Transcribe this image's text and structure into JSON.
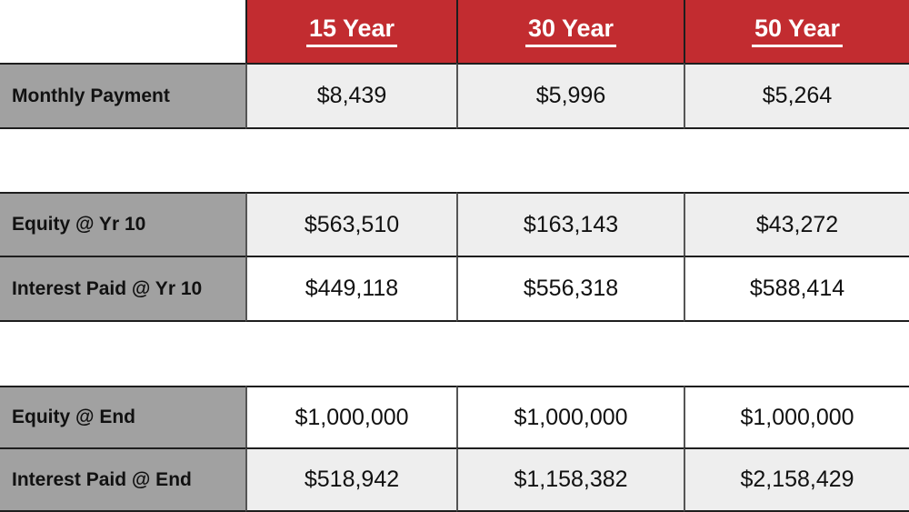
{
  "colors": {
    "header_red": "#C22C30",
    "label_gray": "#A1A1A1",
    "cell_light": "#EEEEEE",
    "cell_white": "#FFFFFF",
    "border_dark": "#1E1E1E",
    "border_gray": "#555555",
    "header_text": "#FFFFFF",
    "body_text": "#111111",
    "background": "#FFFFFF"
  },
  "chart_data": {
    "type": "table",
    "columns": [
      "15 Year",
      "30 Year",
      "50 Year"
    ],
    "rows": [
      {
        "label": "Monthly Payment",
        "values": [
          "$8,439",
          "$5,996",
          "$5,264"
        ]
      },
      {
        "label": "Equity @ Yr 10",
        "values": [
          "$563,510",
          "$163,143",
          "$43,272"
        ]
      },
      {
        "label": "Interest Paid @ Yr 10",
        "values": [
          "$449,118",
          "$556,318",
          "$588,414"
        ]
      },
      {
        "label": "Equity @ End",
        "values": [
          "$1,000,000",
          "$1,000,000",
          "$1,000,000"
        ]
      },
      {
        "label": "Interest Paid @ End",
        "values": [
          "$518,942",
          "$1,158,382",
          "$2,158,429"
        ]
      }
    ],
    "layout": {
      "row_groups": [
        [
          0
        ],
        [
          1,
          2
        ],
        [
          3,
          4
        ]
      ],
      "header_style": "red background, white bold underlined text",
      "label_column_style": "gray background, bold black left-aligned text",
      "value_row_backgrounds": [
        "light",
        "light",
        "white",
        "white",
        "light"
      ]
    }
  }
}
